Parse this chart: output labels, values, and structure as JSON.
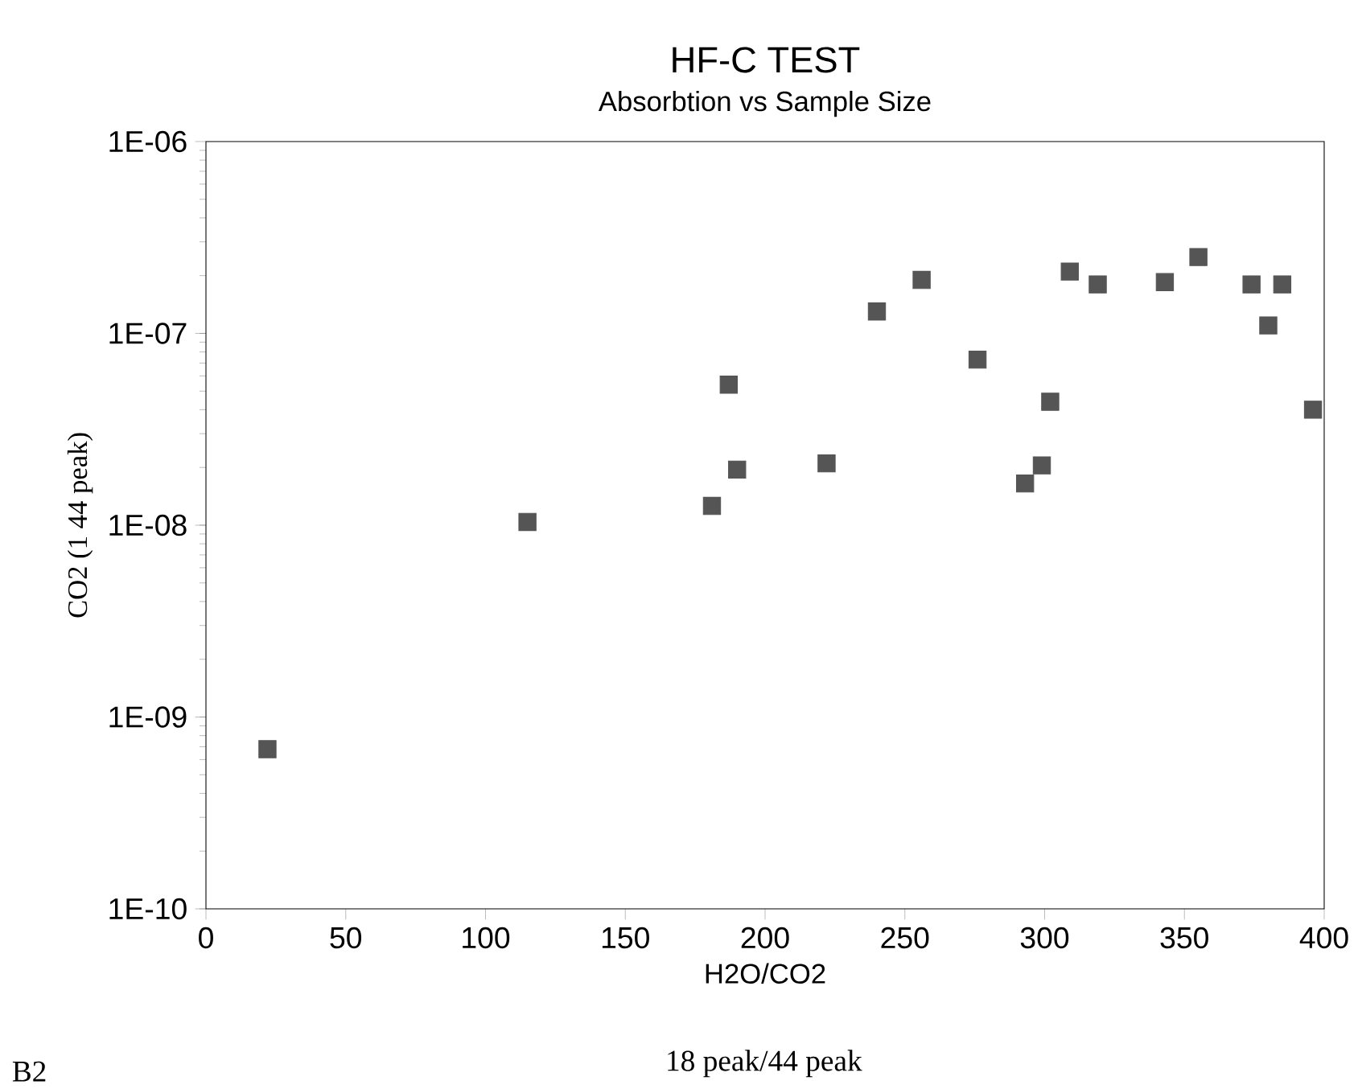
{
  "chart_data": {
    "type": "scatter",
    "title": "HF-C TEST",
    "subtitle": "Absorbtion vs Sample Size",
    "xlabel": "H2O/CO2",
    "ylabel": "CO2 (1 44 peak)",
    "annotations": [
      "18 peak/44 peak",
      "B2"
    ],
    "log": "y",
    "marker": "square",
    "xlim": [
      0,
      400
    ],
    "xticks": [
      0,
      50,
      100,
      150,
      200,
      250,
      300,
      350,
      400
    ],
    "ylim": [
      1e-10,
      1e-06
    ],
    "yticks": [
      {
        "value": 1e-10,
        "label": "1E-10"
      },
      {
        "value": 1e-09,
        "label": "1E-09"
      },
      {
        "value": 1e-08,
        "label": "1E-08"
      },
      {
        "value": 1e-07,
        "label": "1E-07"
      },
      {
        "value": 1e-06,
        "label": "1E-06"
      }
    ],
    "series": [
      {
        "color": "#555555",
        "x": [
          22,
          115,
          181,
          187,
          190,
          222,
          240,
          256,
          276,
          293,
          299,
          302,
          309,
          319,
          343,
          355,
          374,
          385,
          380,
          396
        ],
        "values": [
          6.8e-10,
          1.04e-08,
          1.26e-08,
          5.4e-08,
          1.95e-08,
          2.1e-08,
          1.3e-07,
          1.9e-07,
          7.3e-08,
          1.65e-08,
          2.05e-08,
          4.4e-08,
          2.1e-07,
          1.8e-07,
          1.85e-07,
          2.5e-07,
          1.8e-07,
          1.8e-07,
          1.1e-07,
          4e-08
        ]
      }
    ]
  }
}
